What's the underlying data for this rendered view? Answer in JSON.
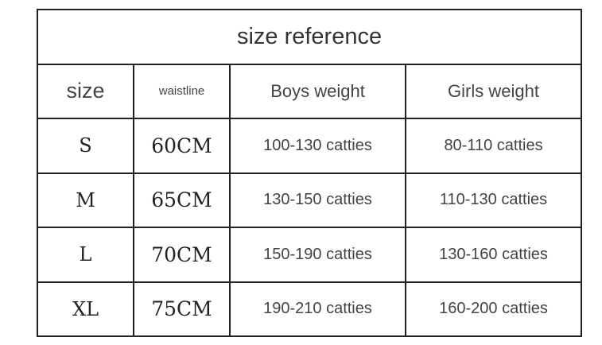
{
  "table": {
    "title": "size reference",
    "headers": {
      "size": "size",
      "waistline": "waistline",
      "boys": "Boys weight",
      "girls": "Girls weight"
    },
    "rows": [
      {
        "size": "S",
        "waistline": "60CM",
        "boys": "100-130 catties",
        "girls": "80-110 catties"
      },
      {
        "size": "M",
        "waistline": "65CM",
        "boys": "130-150 catties",
        "girls": "110-130 catties"
      },
      {
        "size": "L",
        "waistline": "70CM",
        "boys": "150-190 catties",
        "girls": "130-160 catties"
      },
      {
        "size": "XL",
        "waistline": "75CM",
        "boys": "190-210 catties",
        "girls": "160-200 catties"
      }
    ]
  }
}
